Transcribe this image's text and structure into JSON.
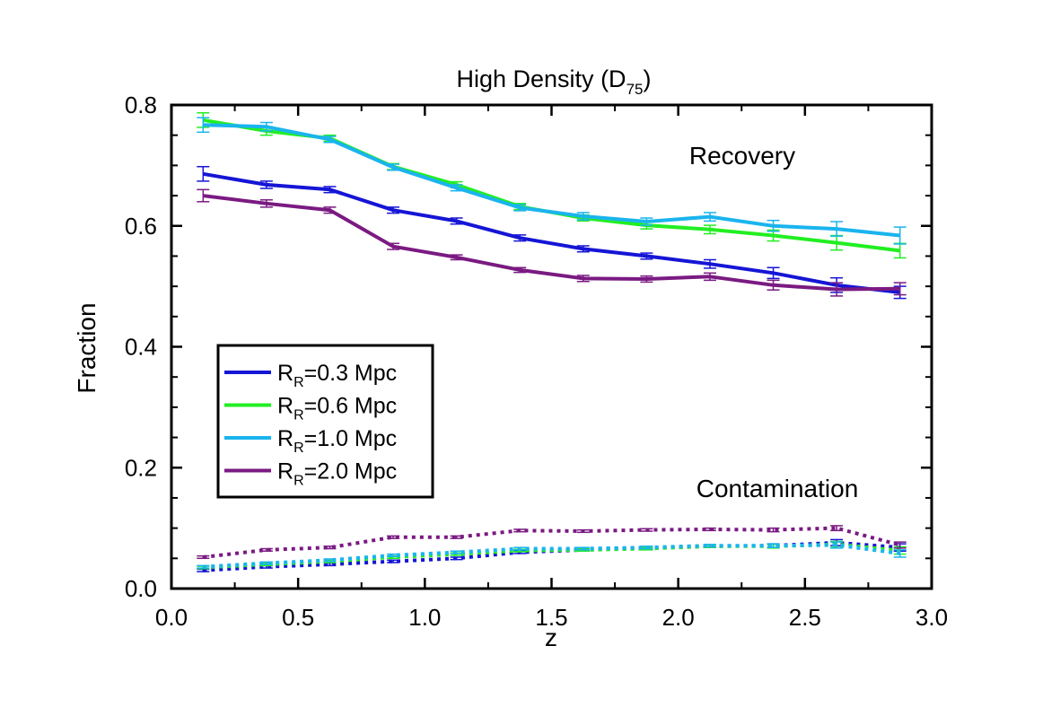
{
  "chart_data": {
    "type": "line",
    "title": "High Density (D",
    "title_sub": "75",
    "title_end": ")",
    "xlabel": "z",
    "ylabel": "Fraction",
    "xlim": [
      0.0,
      3.0
    ],
    "ylim": [
      0.0,
      0.8
    ],
    "xticks": [
      "0.0",
      "0.5",
      "1.0",
      "1.5",
      "2.0",
      "2.5",
      "3.0"
    ],
    "yticks": [
      "0.0",
      "0.2",
      "0.4",
      "0.6",
      "0.8"
    ],
    "x": [
      0.125,
      0.375,
      0.625,
      0.875,
      1.125,
      1.375,
      1.625,
      1.875,
      2.125,
      2.375,
      2.625,
      2.875
    ],
    "annotations": {
      "recovery": "Recovery",
      "contamination": "Contamination"
    },
    "legend_location": "center-left",
    "series": [
      {
        "name": "R_R=0.3 Mpc",
        "legend_main": "R",
        "legend_sub": "R",
        "legend_rest": "=0.3 Mpc",
        "color": "#1515d6",
        "recovery": [
          0.686,
          0.668,
          0.66,
          0.626,
          0.608,
          0.58,
          0.562,
          0.55,
          0.537,
          0.522,
          0.502,
          0.49
        ],
        "recovery_err": [
          0.012,
          0.006,
          0.005,
          0.005,
          0.005,
          0.005,
          0.005,
          0.005,
          0.007,
          0.009,
          0.012,
          0.01
        ],
        "contamination": [
          0.03,
          0.036,
          0.04,
          0.045,
          0.05,
          0.06,
          0.064,
          0.067,
          0.07,
          0.071,
          0.076,
          0.068
        ],
        "contamination_err": [
          0.002,
          0.002,
          0.002,
          0.002,
          0.002,
          0.002,
          0.002,
          0.002,
          0.002,
          0.003,
          0.005,
          0.006
        ]
      },
      {
        "name": "R_R=0.6 Mpc",
        "legend_main": "R",
        "legend_sub": "R",
        "legend_rest": "=0.6 Mpc",
        "color": "#22ee22",
        "recovery": [
          0.775,
          0.757,
          0.745,
          0.698,
          0.668,
          0.632,
          0.613,
          0.601,
          0.594,
          0.584,
          0.572,
          0.559
        ],
        "recovery_err": [
          0.012,
          0.007,
          0.005,
          0.005,
          0.005,
          0.005,
          0.005,
          0.006,
          0.007,
          0.009,
          0.012,
          0.012
        ],
        "contamination": [
          0.035,
          0.04,
          0.045,
          0.052,
          0.057,
          0.063,
          0.064,
          0.066,
          0.07,
          0.07,
          0.073,
          0.063
        ],
        "contamination_err": [
          0.002,
          0.002,
          0.002,
          0.002,
          0.002,
          0.002,
          0.002,
          0.002,
          0.002,
          0.003,
          0.005,
          0.006
        ]
      },
      {
        "name": "R_R=1.0 Mpc",
        "legend_main": "R",
        "legend_sub": "R",
        "legend_rest": "=1.0 Mpc",
        "color": "#1ab4ee",
        "recovery": [
          0.767,
          0.764,
          0.743,
          0.697,
          0.663,
          0.63,
          0.616,
          0.607,
          0.615,
          0.6,
          0.595,
          0.584
        ],
        "recovery_err": [
          0.012,
          0.007,
          0.005,
          0.005,
          0.005,
          0.005,
          0.006,
          0.006,
          0.007,
          0.009,
          0.012,
          0.014
        ],
        "contamination": [
          0.036,
          0.042,
          0.047,
          0.055,
          0.06,
          0.066,
          0.066,
          0.068,
          0.071,
          0.071,
          0.072,
          0.058
        ],
        "contamination_err": [
          0.002,
          0.002,
          0.002,
          0.002,
          0.002,
          0.002,
          0.002,
          0.002,
          0.002,
          0.003,
          0.005,
          0.006
        ]
      },
      {
        "name": "R_R=2.0 Mpc",
        "legend_main": "R",
        "legend_sub": "R",
        "legend_rest": "=2.0 Mpc",
        "color": "#7a1a82",
        "recovery": [
          0.65,
          0.637,
          0.626,
          0.566,
          0.548,
          0.527,
          0.513,
          0.512,
          0.516,
          0.502,
          0.495,
          0.496
        ],
        "recovery_err": [
          0.01,
          0.006,
          0.005,
          0.005,
          0.004,
          0.004,
          0.005,
          0.005,
          0.006,
          0.008,
          0.011,
          0.01
        ],
        "contamination": [
          0.052,
          0.064,
          0.068,
          0.085,
          0.085,
          0.096,
          0.095,
          0.097,
          0.098,
          0.097,
          0.1,
          0.072
        ],
        "contamination_err": [
          0.002,
          0.002,
          0.002,
          0.002,
          0.002,
          0.002,
          0.002,
          0.002,
          0.002,
          0.003,
          0.004,
          0.005
        ]
      }
    ]
  }
}
